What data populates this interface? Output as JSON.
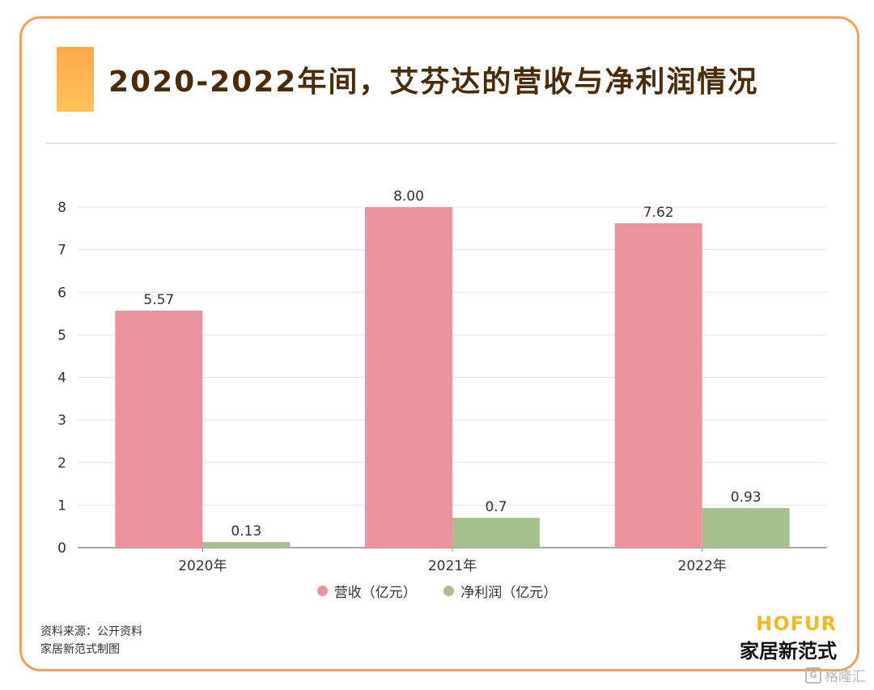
{
  "header": {
    "title": "2020-2022年间，艾芬达的营收与净利润情况"
  },
  "chart_data": {
    "type": "bar",
    "categories": [
      "2020年",
      "2021年",
      "2022年"
    ],
    "series": [
      {
        "name": "营收（亿元）",
        "values": [
          5.57,
          8.0,
          7.62
        ],
        "labels": [
          "5.57",
          "8.00",
          "7.62"
        ],
        "color": "#ec93a0"
      },
      {
        "name": "净利润（亿元）",
        "values": [
          0.13,
          0.7,
          0.93
        ],
        "labels": [
          "0.13",
          "0.7",
          "0.93"
        ],
        "color": "#a6c08d"
      }
    ],
    "yticks": [
      "0",
      "1",
      "2",
      "3",
      "4",
      "5",
      "6",
      "7",
      "8"
    ],
    "ylim": [
      0,
      8
    ],
    "grid": true,
    "legend_position": "bottom"
  },
  "legend": {
    "items": [
      "营收（亿元）",
      "净利润（亿元）"
    ]
  },
  "footer": {
    "source": "资料来源：公开资料",
    "maker": "家居新范式制图",
    "brand_en": "HOFUR",
    "brand_cn": "家居新范式",
    "watermark": "格隆汇",
    "watermark_icon": "G"
  }
}
